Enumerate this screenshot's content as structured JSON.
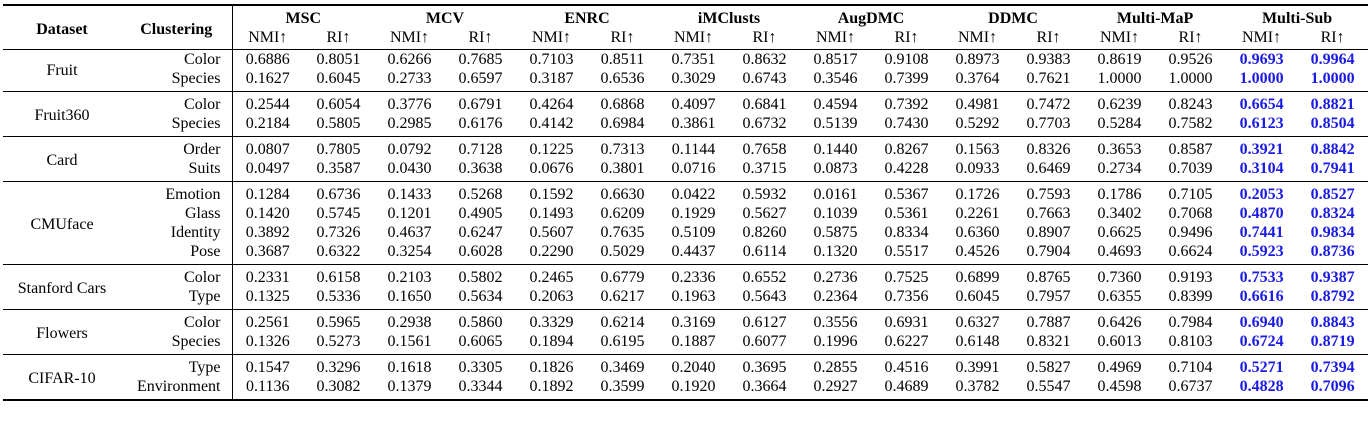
{
  "header": {
    "dataset": "Dataset",
    "clustering": "Clustering",
    "methods": [
      "MSC",
      "MCV",
      "ENRC",
      "iMClusts",
      "AugDMC",
      "DDMC",
      "Multi-MaP",
      "Multi-Sub"
    ],
    "metric_nmi": "NMI↑",
    "metric_ri": "RI↑"
  },
  "groups": [
    {
      "dataset": "Fruit",
      "rows": [
        {
          "clustering": "Color",
          "values": [
            "0.6886",
            "0.8051",
            "0.6266",
            "0.7685",
            "0.7103",
            "0.8511",
            "0.7351",
            "0.8632",
            "0.8517",
            "0.9108",
            "0.8973",
            "0.9383",
            "0.8619",
            "0.9526",
            "0.9693",
            "0.9964"
          ]
        },
        {
          "clustering": "Species",
          "values": [
            "0.1627",
            "0.6045",
            "0.2733",
            "0.6597",
            "0.3187",
            "0.6536",
            "0.3029",
            "0.6743",
            "0.3546",
            "0.7399",
            "0.3764",
            "0.7621",
            "1.0000",
            "1.0000",
            "1.0000",
            "1.0000"
          ]
        }
      ]
    },
    {
      "dataset": "Fruit360",
      "rows": [
        {
          "clustering": "Color",
          "values": [
            "0.2544",
            "0.6054",
            "0.3776",
            "0.6791",
            "0.4264",
            "0.6868",
            "0.4097",
            "0.6841",
            "0.4594",
            "0.7392",
            "0.4981",
            "0.7472",
            "0.6239",
            "0.8243",
            "0.6654",
            "0.8821"
          ]
        },
        {
          "clustering": "Species",
          "values": [
            "0.2184",
            "0.5805",
            "0.2985",
            "0.6176",
            "0.4142",
            "0.6984",
            "0.3861",
            "0.6732",
            "0.5139",
            "0.7430",
            "0.5292",
            "0.7703",
            "0.5284",
            "0.7582",
            "0.6123",
            "0.8504"
          ]
        }
      ]
    },
    {
      "dataset": "Card",
      "rows": [
        {
          "clustering": "Order",
          "values": [
            "0.0807",
            "0.7805",
            "0.0792",
            "0.7128",
            "0.1225",
            "0.7313",
            "0.1144",
            "0.7658",
            "0.1440",
            "0.8267",
            "0.1563",
            "0.8326",
            "0.3653",
            "0.8587",
            "0.3921",
            "0.8842"
          ]
        },
        {
          "clustering": "Suits",
          "values": [
            "0.0497",
            "0.3587",
            "0.0430",
            "0.3638",
            "0.0676",
            "0.3801",
            "0.0716",
            "0.3715",
            "0.0873",
            "0.4228",
            "0.0933",
            "0.6469",
            "0.2734",
            "0.7039",
            "0.3104",
            "0.7941"
          ]
        }
      ]
    },
    {
      "dataset": "CMUface",
      "rows": [
        {
          "clustering": "Emotion",
          "values": [
            "0.1284",
            "0.6736",
            "0.1433",
            "0.5268",
            "0.1592",
            "0.6630",
            "0.0422",
            "0.5932",
            "0.0161",
            "0.5367",
            "0.1726",
            "0.7593",
            "0.1786",
            "0.7105",
            "0.2053",
            "0.8527"
          ]
        },
        {
          "clustering": "Glass",
          "values": [
            "0.1420",
            "0.5745",
            "0.1201",
            "0.4905",
            "0.1493",
            "0.6209",
            "0.1929",
            "0.5627",
            "0.1039",
            "0.5361",
            "0.2261",
            "0.7663",
            "0.3402",
            "0.7068",
            "0.4870",
            "0.8324"
          ]
        },
        {
          "clustering": "Identity",
          "values": [
            "0.3892",
            "0.7326",
            "0.4637",
            "0.6247",
            "0.5607",
            "0.7635",
            "0.5109",
            "0.8260",
            "0.5875",
            "0.8334",
            "0.6360",
            "0.8907",
            "0.6625",
            "0.9496",
            "0.7441",
            "0.9834"
          ]
        },
        {
          "clustering": "Pose",
          "values": [
            "0.3687",
            "0.6322",
            "0.3254",
            "0.6028",
            "0.2290",
            "0.5029",
            "0.4437",
            "0.6114",
            "0.1320",
            "0.5517",
            "0.4526",
            "0.7904",
            "0.4693",
            "0.6624",
            "0.5923",
            "0.8736"
          ]
        }
      ]
    },
    {
      "dataset": "Stanford Cars",
      "rows": [
        {
          "clustering": "Color",
          "values": [
            "0.2331",
            "0.6158",
            "0.2103",
            "0.5802",
            "0.2465",
            "0.6779",
            "0.2336",
            "0.6552",
            "0.2736",
            "0.7525",
            "0.6899",
            "0.8765",
            "0.7360",
            "0.9193",
            "0.7533",
            "0.9387"
          ]
        },
        {
          "clustering": "Type",
          "values": [
            "0.1325",
            "0.5336",
            "0.1650",
            "0.5634",
            "0.2063",
            "0.6217",
            "0.1963",
            "0.5643",
            "0.2364",
            "0.7356",
            "0.6045",
            "0.7957",
            "0.6355",
            "0.8399",
            "0.6616",
            "0.8792"
          ]
        }
      ]
    },
    {
      "dataset": "Flowers",
      "rows": [
        {
          "clustering": "Color",
          "values": [
            "0.2561",
            "0.5965",
            "0.2938",
            "0.5860",
            "0.3329",
            "0.6214",
            "0.3169",
            "0.6127",
            "0.3556",
            "0.6931",
            "0.6327",
            "0.7887",
            "0.6426",
            "0.7984",
            "0.6940",
            "0.8843"
          ]
        },
        {
          "clustering": "Species",
          "values": [
            "0.1326",
            "0.5273",
            "0.1561",
            "0.6065",
            "0.1894",
            "0.6195",
            "0.1887",
            "0.6077",
            "0.1996",
            "0.6227",
            "0.6148",
            "0.8321",
            "0.6013",
            "0.8103",
            "0.6724",
            "0.8719"
          ]
        }
      ]
    },
    {
      "dataset": "CIFAR-10",
      "rows": [
        {
          "clustering": "Type",
          "values": [
            "0.1547",
            "0.3296",
            "0.1618",
            "0.3305",
            "0.1826",
            "0.3469",
            "0.2040",
            "0.3695",
            "0.2855",
            "0.4516",
            "0.3991",
            "0.5827",
            "0.4969",
            "0.7104",
            "0.5271",
            "0.7394"
          ]
        },
        {
          "clustering": "Environment",
          "values": [
            "0.1136",
            "0.3082",
            "0.1379",
            "0.3344",
            "0.1892",
            "0.3599",
            "0.1920",
            "0.3664",
            "0.2927",
            "0.4689",
            "0.3782",
            "0.5547",
            "0.4598",
            "0.6737",
            "0.4828",
            "0.7096"
          ]
        }
      ]
    }
  ],
  "highlight": {
    "best_color": "#1a1ae6",
    "best_columns": "Multi-Sub"
  }
}
